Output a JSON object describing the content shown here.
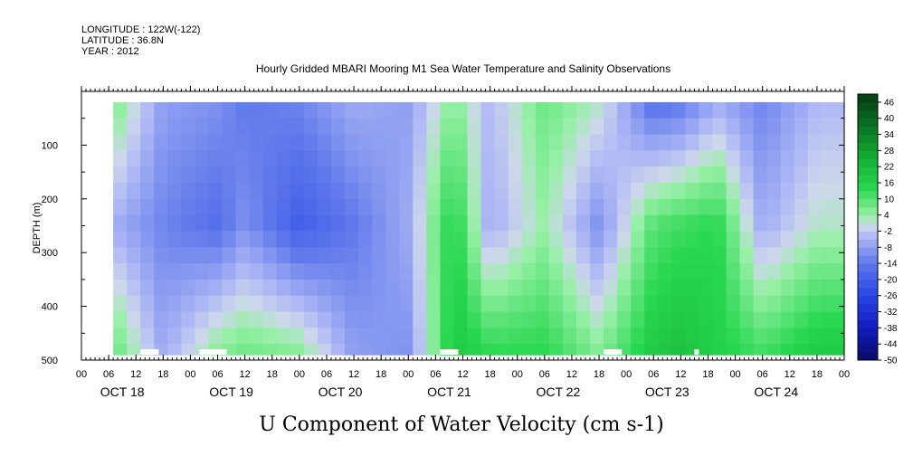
{
  "header": {
    "longitude": "LONGITUDE : 122W(-122)",
    "latitude": "LATITUDE : 36.8N",
    "year": "YEAR : 2012",
    "title": "Hourly Gridded MBARI Mooring M1 Sea Water Temperature and Salinity Observations"
  },
  "footer_title": "U Component of Water Velocity (cm s-1)",
  "colors": {
    "negative": "#2a35d6",
    "neutral": "#b0b8f0",
    "positive": "#17c23c",
    "gap": "#ffffff"
  },
  "chart_data": {
    "type": "heatmap",
    "variable": "U Component of Water Velocity (cm s-1)",
    "ylabel": "DEPTH (m)",
    "ylim": [
      500,
      0
    ],
    "y_ticks": [
      "100",
      "200",
      "300",
      "400",
      "500"
    ],
    "x_hour_ticks": [
      "00",
      "06",
      "12",
      "18",
      "00",
      "06",
      "12",
      "18",
      "00",
      "06",
      "12",
      "18",
      "00",
      "06",
      "12",
      "18",
      "00",
      "06",
      "12",
      "18",
      "00",
      "06",
      "12",
      "18",
      "00",
      "06",
      "12",
      "18",
      "00"
    ],
    "x_date_labels": [
      "OCT 18",
      "OCT 19",
      "OCT 20",
      "OCT 21",
      "OCT 22",
      "OCT 23",
      "OCT 24"
    ],
    "xlim": [
      "2012-10-18T00:00",
      "2012-10-25T00:00"
    ],
    "data_start": "2012-10-18T07:00",
    "depth_range": [
      20,
      490
    ],
    "colorbar": {
      "ticks": [
        "46",
        "40",
        "34",
        "28",
        "22",
        "16",
        "10",
        "4",
        "-2",
        "-8",
        "-14",
        "-20",
        "-26",
        "-32",
        "-38",
        "-44",
        "-50"
      ],
      "min": -50,
      "max": 49,
      "step": 3
    },
    "profile_samples": [
      {
        "time": "2012-10-18T08:00",
        "surface": 6,
        "mid": -6,
        "deep": 8
      },
      {
        "time": "2012-10-18T18:00",
        "surface": -8,
        "mid": -12,
        "deep": -6
      },
      {
        "time": "2012-10-19T06:00",
        "surface": -10,
        "mid": -16,
        "deep": 6
      },
      {
        "time": "2012-10-19T12:00",
        "surface": -14,
        "mid": -10,
        "deep": 8
      },
      {
        "time": "2012-10-20T00:00",
        "surface": -12,
        "mid": -20,
        "deep": 6
      },
      {
        "time": "2012-10-20T12:00",
        "surface": -6,
        "mid": -14,
        "deep": -8
      },
      {
        "time": "2012-10-21T00:00",
        "surface": -8,
        "mid": -6,
        "deep": -10
      },
      {
        "time": "2012-10-21T10:00",
        "surface": 6,
        "mid": 16,
        "deep": 18
      },
      {
        "time": "2012-10-21T18:00",
        "surface": -4,
        "mid": -6,
        "deep": 14
      },
      {
        "time": "2012-10-22T06:00",
        "surface": 8,
        "mid": 4,
        "deep": 14
      },
      {
        "time": "2012-10-22T18:00",
        "surface": 2,
        "mid": -10,
        "deep": 6
      },
      {
        "time": "2012-10-23T06:00",
        "surface": -16,
        "mid": 10,
        "deep": 18
      },
      {
        "time": "2012-10-23T12:00",
        "surface": -14,
        "mid": 12,
        "deep": 20
      },
      {
        "time": "2012-10-23T20:00",
        "surface": -6,
        "mid": 14,
        "deep": 16
      },
      {
        "time": "2012-10-24T06:00",
        "surface": -12,
        "mid": -6,
        "deep": 12
      },
      {
        "time": "2012-10-24T18:00",
        "surface": -4,
        "mid": 2,
        "deep": 18
      }
    ],
    "missing_segments_at_depth_490": [
      {
        "start": "2012-10-18T13:00",
        "end": "2012-10-18T17:00"
      },
      {
        "start": "2012-10-19T02:00",
        "end": "2012-10-19T08:00"
      },
      {
        "start": "2012-10-21T07:00",
        "end": "2012-10-21T11:00"
      },
      {
        "start": "2012-10-22T19:00",
        "end": "2012-10-22T23:00"
      },
      {
        "start": "2012-10-23T15:00",
        "end": "2012-10-23T16:00"
      }
    ]
  }
}
